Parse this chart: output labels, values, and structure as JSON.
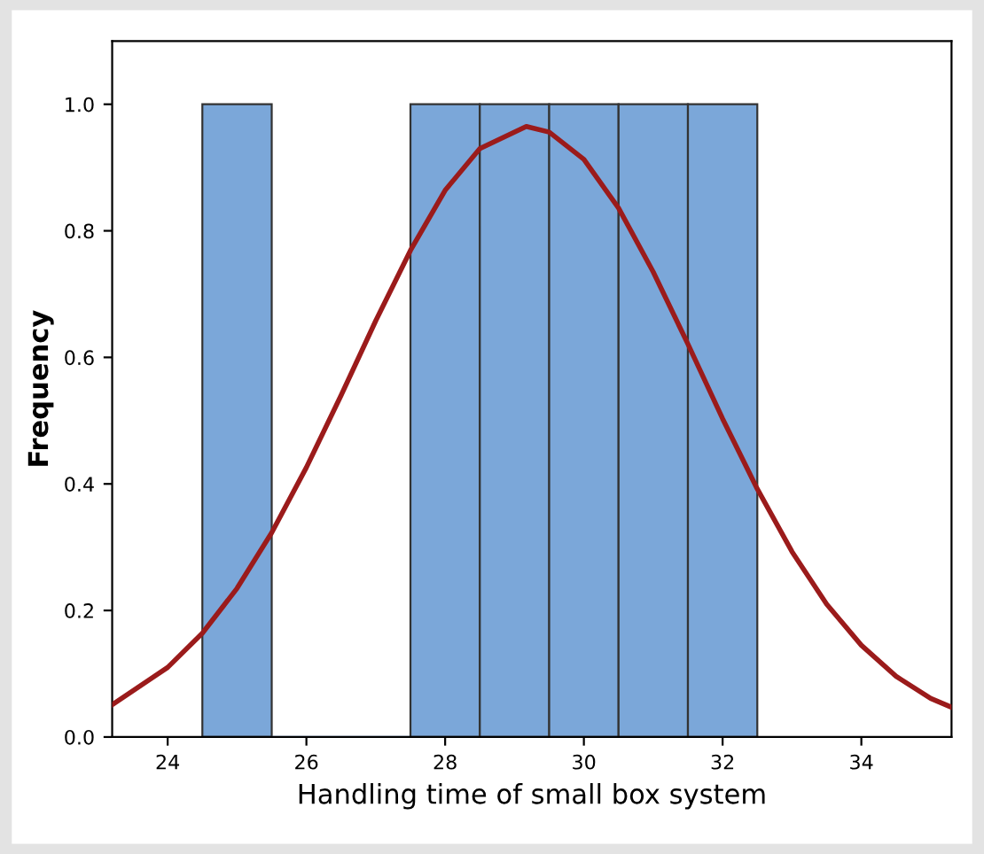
{
  "chart_data": {
    "type": "histogram",
    "xlabel": "Handling time of small box system",
    "ylabel": "Frequency",
    "bins": [
      24.5,
      25.5,
      26.5,
      27.5,
      28.5,
      29.5,
      30.5,
      31.5,
      32.5
    ],
    "values": [
      1,
      0,
      0,
      1,
      1,
      1,
      1,
      1
    ],
    "color": "#7ba7d9",
    "series": [
      {
        "type": "line",
        "color": "#9b1b1b",
        "x": [
          23.2,
          24,
          24.5,
          25,
          25.5,
          26,
          26.5,
          27,
          27.5,
          28,
          28.5,
          29.17,
          29.5,
          30,
          30.5,
          31,
          31.5,
          32,
          32.5,
          33,
          33.5,
          34,
          34.5,
          35,
          35.3
        ],
        "values": [
          0.051,
          0.11,
          0.164,
          0.235,
          0.323,
          0.426,
          0.54,
          0.658,
          0.769,
          0.864,
          0.93,
          0.965,
          0.956,
          0.913,
          0.836,
          0.735,
          0.621,
          0.503,
          0.392,
          0.293,
          0.21,
          0.145,
          0.096,
          0.061,
          0.047
        ]
      }
    ],
    "xlim": [
      23.2,
      35.3
    ],
    "ylim": [
      0,
      1.1
    ],
    "xticks": [
      24,
      26,
      28,
      30,
      32,
      34
    ],
    "yticks": [
      {
        "value": 0,
        "label": "0.0"
      },
      {
        "value": 0.2,
        "label": "0.2"
      },
      {
        "value": 0.4,
        "label": "0.4"
      },
      {
        "value": 0.6,
        "label": "0.6"
      },
      {
        "value": 0.8,
        "label": "0.8"
      },
      {
        "value": 1,
        "label": "1.0"
      }
    ],
    "grid": false,
    "legend": false
  }
}
